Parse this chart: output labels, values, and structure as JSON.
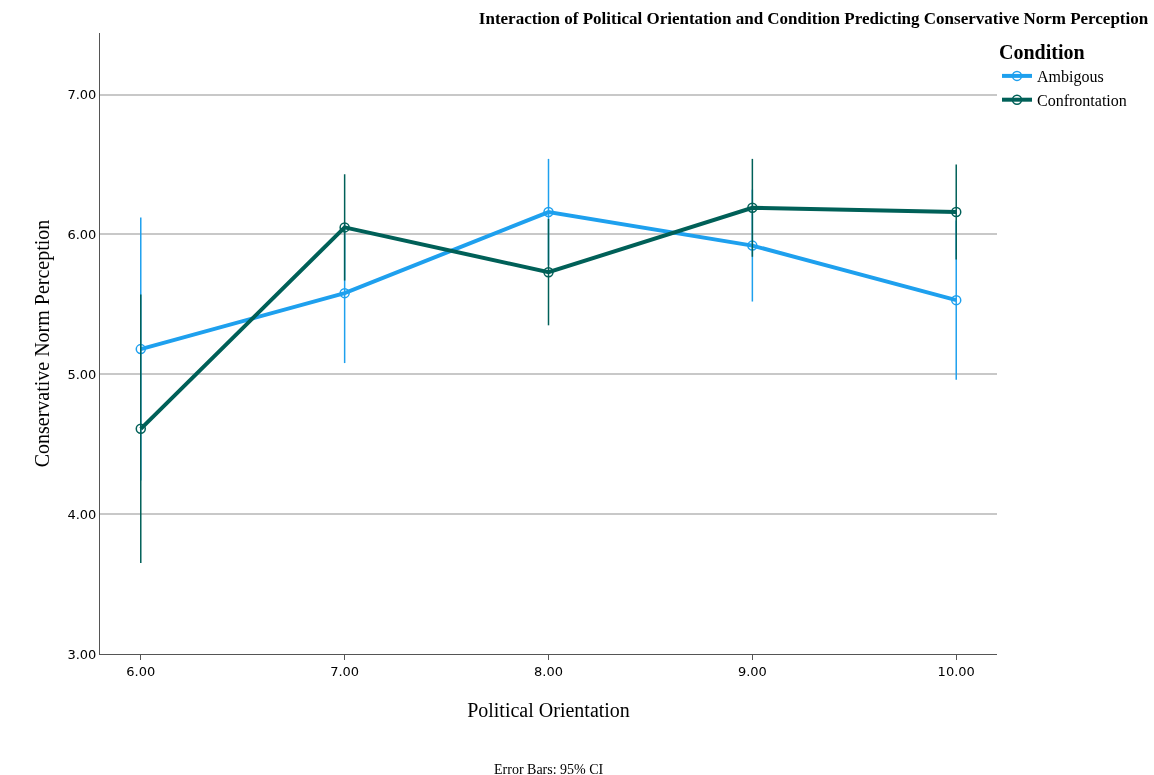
{
  "chart_data": {
    "type": "line",
    "title": "Interaction of Political Orientation and Condition Predicting Conservative Norm Perception",
    "xlabel": "Political Orientation",
    "ylabel": "Conservative Norm Perception",
    "legend_title": "Condition",
    "annotations": [
      "Error Bars: 95% CI"
    ],
    "x": [
      6,
      7,
      8,
      9,
      10
    ],
    "series": [
      {
        "name": "Ambigous",
        "color": "#1ea0ee",
        "values": [
          5.18,
          5.58,
          6.16,
          5.92,
          5.53
        ],
        "errors": [
          [
            4.24,
            6.12
          ],
          [
            5.08,
            6.08
          ],
          [
            5.78,
            6.54
          ],
          [
            5.52,
            6.32
          ],
          [
            4.96,
            6.1
          ]
        ]
      },
      {
        "name": "Confrontation",
        "color": "#006058",
        "values": [
          4.61,
          6.05,
          5.73,
          6.19,
          6.16
        ],
        "errors": [
          [
            3.65,
            5.57
          ],
          [
            5.67,
            6.43
          ],
          [
            5.35,
            6.11
          ],
          [
            5.84,
            6.54
          ],
          [
            5.82,
            6.5
          ]
        ]
      }
    ],
    "xlim": [
      5.8,
      10.2
    ],
    "xticks": [
      {
        "value": 6,
        "label": "6.00"
      },
      {
        "value": 7,
        "label": "7.00"
      },
      {
        "value": 8,
        "label": "8.00"
      },
      {
        "value": 9,
        "label": "9.00"
      },
      {
        "value": 10,
        "label": "10.00"
      }
    ],
    "ylim": [
      3,
      7.44
    ],
    "yticks": [
      {
        "value": 3,
        "label": "3.00"
      },
      {
        "value": 4,
        "label": "4.00"
      },
      {
        "value": 5,
        "label": "5.00"
      },
      {
        "value": 6,
        "label": "6.00"
      },
      {
        "value": 7,
        "label": "7.00"
      }
    ],
    "grid": "y",
    "legend": "top right",
    "marker": "circle",
    "line_style": "solid"
  }
}
